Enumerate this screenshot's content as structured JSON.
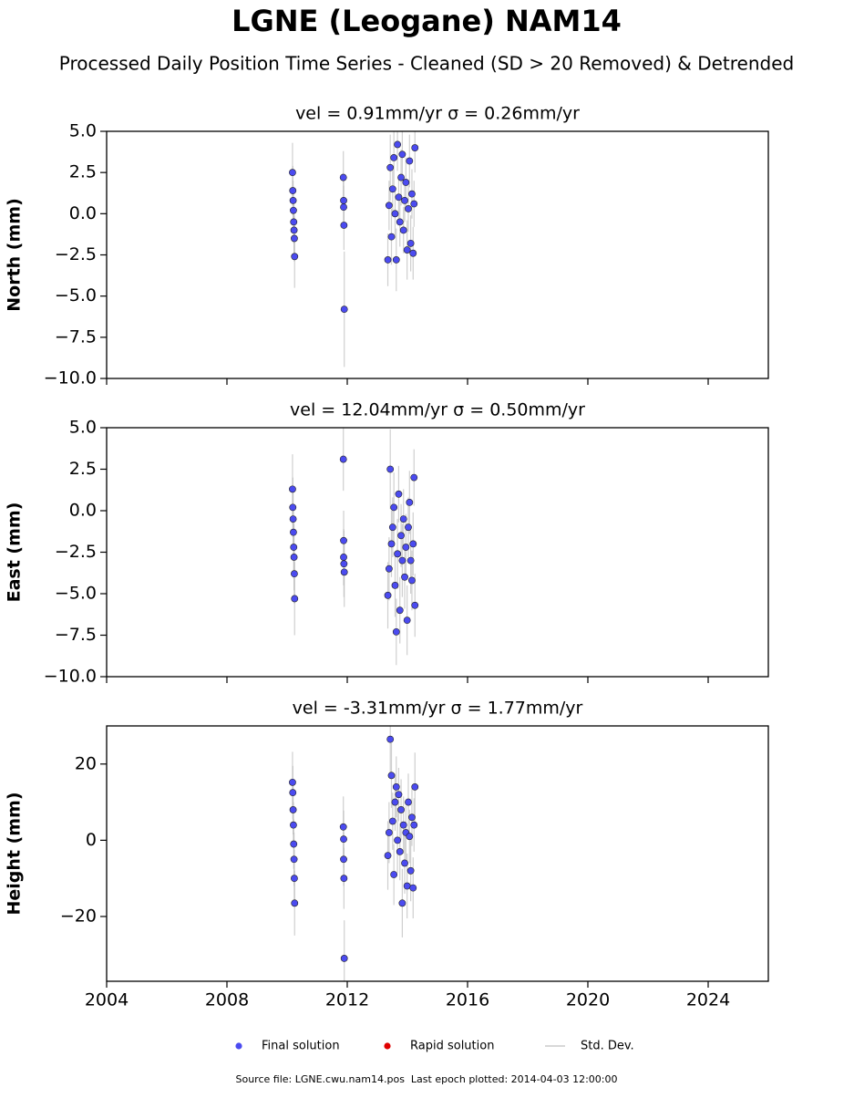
{
  "header": {
    "title": "LGNE (Leogane) NAM14",
    "subtitle": "Processed Daily Position Time Series - Cleaned (SD > 20 Removed) & Detrended"
  },
  "legend": {
    "position": "bottom",
    "entries": [
      {
        "name": "Final solution",
        "color": "#4b4bf0",
        "marker": "dot"
      },
      {
        "name": "Rapid solution",
        "color": "#e00000",
        "marker": "dot"
      },
      {
        "name": "Std. Dev.",
        "color": "#cccccc",
        "marker": "line"
      }
    ]
  },
  "footer": "Source file: LGNE.cwu.nam14.pos  Last epoch plotted: 2014-04-03 12:00:00",
  "chart_data": [
    {
      "type": "scatter",
      "title": "vel = 0.91mm/yr   σ = 0.26mm/yr",
      "y_label": "North (mm)",
      "show_xtick_labels": false,
      "x": [
        2010.18,
        2010.19,
        2010.2,
        2010.21,
        2010.22,
        2010.23,
        2010.24,
        2010.25,
        2011.87,
        2011.88,
        2011.88,
        2011.89,
        2011.9,
        2013.35,
        2013.39,
        2013.43,
        2013.47,
        2013.51,
        2013.55,
        2013.59,
        2013.63,
        2013.67,
        2013.71,
        2013.75,
        2013.79,
        2013.83,
        2013.87,
        2013.91,
        2013.95,
        2013.99,
        2014.03,
        2014.07,
        2014.11,
        2014.15,
        2014.19,
        2014.22,
        2014.25
      ],
      "series": [
        {
          "color": "#4b4bf0",
          "error_color": "#bbbbbb",
          "values": [
            2.5,
            1.4,
            0.8,
            0.2,
            -0.5,
            -1.0,
            -1.5,
            -2.6,
            2.2,
            0.8,
            0.4,
            -0.7,
            -5.8,
            -2.8,
            0.5,
            2.8,
            -1.4,
            1.5,
            3.4,
            0.0,
            -2.8,
            4.2,
            1.0,
            -0.5,
            2.2,
            3.6,
            -1.0,
            0.8,
            1.9,
            -2.2,
            0.3,
            3.2,
            -1.8,
            1.2,
            -2.4,
            0.6,
            4.0
          ],
          "errors": [
            1.8,
            1.5,
            1.2,
            1.2,
            1.3,
            1.5,
            1.4,
            1.9,
            1.6,
            1.4,
            1.3,
            1.5,
            3.5,
            1.6,
            1.5,
            2.0,
            1.7,
            1.4,
            1.8,
            1.5,
            1.9,
            1.6,
            1.3,
            1.5,
            1.7,
            1.6,
            1.4,
            1.3,
            1.5,
            1.8,
            1.4,
            1.6,
            1.7,
            1.5,
            1.6,
            1.4,
            1.5
          ]
        }
      ],
      "xlim": [
        2004,
        2026
      ],
      "xticks": [
        2004,
        2008,
        2012,
        2016,
        2020,
        2024
      ],
      "ylim": [
        -10,
        5
      ],
      "yticks": [
        {
          "value": -10,
          "label": "−10.0"
        },
        {
          "value": -7.5,
          "label": "−7.5"
        },
        {
          "value": -5,
          "label": "−5.0"
        },
        {
          "value": -2.5,
          "label": "−2.5"
        },
        {
          "value": 0,
          "label": "0.0"
        },
        2.5,
        {
          "value": 5,
          "label": "5.0"
        }
      ]
    },
    {
      "type": "scatter",
      "title": "vel = 12.04mm/yr   σ = 0.50mm/yr",
      "y_label": "East (mm)",
      "show_xtick_labels": false,
      "x": [
        2010.18,
        2010.19,
        2010.2,
        2010.21,
        2010.22,
        2010.23,
        2010.24,
        2010.25,
        2011.87,
        2011.88,
        2011.88,
        2011.89,
        2011.9,
        2013.35,
        2013.39,
        2013.43,
        2013.47,
        2013.51,
        2013.55,
        2013.59,
        2013.63,
        2013.67,
        2013.71,
        2013.75,
        2013.79,
        2013.83,
        2013.87,
        2013.91,
        2013.95,
        2013.99,
        2014.03,
        2014.07,
        2014.11,
        2014.15,
        2014.19,
        2014.22,
        2014.25
      ],
      "series": [
        {
          "color": "#4b4bf0",
          "error_color": "#bbbbbb",
          "values": [
            1.3,
            0.2,
            -0.5,
            -1.3,
            -2.2,
            -2.8,
            -3.8,
            -5.3,
            3.1,
            -1.8,
            -2.8,
            -3.2,
            -3.7,
            -5.1,
            -3.5,
            2.5,
            -2.0,
            -1.0,
            0.2,
            -4.5,
            -7.3,
            -2.6,
            1.0,
            -6.0,
            -1.5,
            -3.0,
            -0.5,
            -4.0,
            -2.2,
            -6.6,
            -1.0,
            0.5,
            -3.0,
            -4.2,
            -2.0,
            2.0,
            -5.7
          ],
          "errors": [
            2.1,
            1.8,
            1.6,
            1.7,
            1.9,
            2.0,
            1.8,
            2.2,
            1.9,
            1.8,
            1.7,
            2.0,
            2.1,
            2.0,
            1.9,
            2.4,
            2.0,
            1.8,
            2.1,
            1.9,
            2.0,
            2.1,
            1.7,
            2.0,
            1.9,
            2.2,
            1.8,
            1.9,
            2.0,
            2.1,
            1.8,
            1.9,
            2.0,
            1.8,
            1.9,
            1.7,
            1.9
          ]
        }
      ],
      "xlim": [
        2004,
        2026
      ],
      "xticks": [
        2004,
        2008,
        2012,
        2016,
        2020,
        2024
      ],
      "ylim": [
        -10,
        5
      ],
      "yticks": [
        {
          "value": -10,
          "label": "−10.0"
        },
        {
          "value": -7.5,
          "label": "−7.5"
        },
        {
          "value": -5,
          "label": "−5.0"
        },
        {
          "value": -2.5,
          "label": "−2.5"
        },
        {
          "value": 0,
          "label": "0.0"
        },
        2.5,
        {
          "value": 5,
          "label": "5.0"
        }
      ]
    },
    {
      "type": "scatter",
      "title": "vel = -3.31mm/yr   σ = 1.77mm/yr",
      "y_label": "Height (mm)",
      "show_xtick_labels": true,
      "x": [
        2010.18,
        2010.19,
        2010.2,
        2010.21,
        2010.22,
        2010.23,
        2010.24,
        2010.25,
        2011.87,
        2011.88,
        2011.88,
        2011.89,
        2011.9,
        2013.35,
        2013.39,
        2013.43,
        2013.47,
        2013.51,
        2013.55,
        2013.59,
        2013.63,
        2013.67,
        2013.71,
        2013.75,
        2013.79,
        2013.83,
        2013.87,
        2013.91,
        2013.95,
        2013.99,
        2014.03,
        2014.07,
        2014.11,
        2014.15,
        2014.19,
        2014.22,
        2014.25
      ],
      "series": [
        {
          "color": "#4b4bf0",
          "error_color": "#bbbbbb",
          "values": [
            15.2,
            12.5,
            8.0,
            4.0,
            -1.0,
            -5.0,
            -10.0,
            -16.5,
            3.5,
            0.3,
            -5.0,
            -10.0,
            -31.0,
            -4.0,
            2.0,
            26.5,
            17.0,
            5.0,
            -9.0,
            10.0,
            14.0,
            0.0,
            12.0,
            -3.0,
            8.0,
            -16.5,
            4.0,
            -6.0,
            2.0,
            -12.0,
            10.0,
            1.0,
            -8.0,
            6.0,
            -12.5,
            4.0,
            14.0
          ],
          "errors": [
            8.0,
            7.0,
            6.5,
            6.0,
            6.5,
            7.0,
            7.5,
            8.5,
            8.0,
            7.5,
            7.0,
            8.0,
            10.0,
            9.0,
            8.0,
            9.5,
            8.5,
            7.5,
            8.0,
            7.5,
            8.0,
            8.5,
            7.0,
            7.5,
            8.0,
            9.0,
            7.5,
            8.0,
            7.0,
            8.5,
            7.5,
            7.0,
            8.0,
            7.5,
            8.0,
            7.0,
            9.0
          ]
        }
      ],
      "xlim": [
        2004,
        2026
      ],
      "xticks": [
        2004,
        2008,
        2012,
        2016,
        2020,
        2024
      ],
      "ylim": [
        -37,
        30
      ],
      "yticks": [
        {
          "value": -20,
          "label": "−20"
        },
        0,
        20
      ]
    }
  ]
}
